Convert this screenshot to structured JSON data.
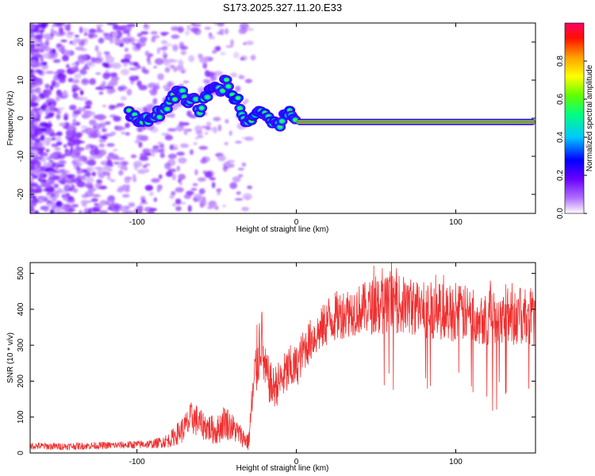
{
  "title": "S173.2025.327.11.20.E33",
  "chart_data": [
    {
      "type": "heatmap",
      "title": "S173.2025.327.11.20.E33",
      "xlabel": "Height of straight line (km)",
      "ylabel": "Frequency (Hz)",
      "xlim": [
        -167,
        150
      ],
      "ylim": [
        -25,
        25
      ],
      "xticks": [
        -100,
        0,
        100
      ],
      "yticks": [
        -20,
        -10,
        0,
        10,
        20
      ],
      "xtick_labels": [
        "-100",
        "0",
        "100"
      ],
      "ytick_labels": [
        "-20",
        "-10",
        "0",
        "10",
        "20"
      ],
      "colorbar": {
        "label": "Normalized spectral amplitude",
        "range": [
          0,
          1
        ],
        "ticks": [
          0.0,
          0.2,
          0.4,
          0.6,
          0.8
        ],
        "tick_labels": [
          "0.0",
          "0.2",
          "0.4",
          "0.6",
          "0.8"
        ],
        "colormap": [
          "#ffffff",
          "#8000ff",
          "#0000ff",
          "#00c8ff",
          "#00ff60",
          "#9bff00",
          "#ffff00",
          "#ffa000",
          "#ff0000",
          "#ff0066"
        ]
      },
      "ridge": {
        "description": "dominant frequency track",
        "x": [
          -105,
          -100,
          -95,
          -90,
          -85,
          -80,
          -76,
          -72,
          -68,
          -64,
          -60,
          -56,
          -52,
          -48,
          -44,
          -40,
          -36,
          -32,
          -28,
          -24,
          -20,
          -16,
          -12,
          -8,
          -4,
          0,
          20,
          50,
          100,
          150
        ],
        "y": [
          1,
          0,
          -1,
          1,
          1,
          4,
          6,
          8,
          3,
          5,
          2,
          6,
          9,
          7,
          10,
          6,
          4,
          0,
          -1,
          2,
          1,
          0,
          -2,
          0,
          1,
          0,
          -1,
          -1,
          -1,
          -1
        ]
      }
    },
    {
      "type": "line",
      "xlabel": "Height of straight line (km)",
      "ylabel": "SNR (10 * v/v)",
      "xlim": [
        -167,
        150
      ],
      "ylim": [
        0,
        530
      ],
      "xticks": [
        -100,
        0,
        100
      ],
      "yticks": [
        0,
        100,
        200,
        300,
        400,
        500
      ],
      "xtick_labels": [
        "-100",
        "0",
        "100"
      ],
      "ytick_labels": [
        "0",
        "100",
        "200",
        "300",
        "400",
        "500"
      ],
      "color": "#f03030",
      "series": [
        {
          "name": "SNR",
          "x": [
            -167,
            -150,
            -130,
            -110,
            -90,
            -80,
            -70,
            -65,
            -60,
            -55,
            -50,
            -45,
            -40,
            -35,
            -30,
            -28,
            -25,
            -22,
            -20,
            -15,
            -10,
            -5,
            0,
            5,
            10,
            15,
            20,
            25,
            30,
            40,
            50,
            60,
            70,
            80,
            90,
            100,
            110,
            120,
            130,
            140,
            150
          ],
          "values": [
            20,
            18,
            20,
            22,
            25,
            35,
            70,
            100,
            80,
            70,
            60,
            90,
            70,
            50,
            30,
            130,
            250,
            330,
            230,
            180,
            200,
            230,
            240,
            290,
            320,
            340,
            370,
            380,
            390,
            400,
            410,
            415,
            410,
            400,
            395,
            390,
            385,
            380,
            385,
            380,
            375
          ],
          "noise_amplitude": [
            10,
            10,
            10,
            10,
            12,
            20,
            40,
            50,
            40,
            40,
            40,
            50,
            40,
            30,
            25,
            60,
            100,
            100,
            70,
            60,
            60,
            70,
            60,
            60,
            60,
            60,
            70,
            70,
            70,
            70,
            80,
            80,
            80,
            80,
            80,
            80,
            80,
            80,
            80,
            80,
            80
          ]
        }
      ]
    }
  ]
}
